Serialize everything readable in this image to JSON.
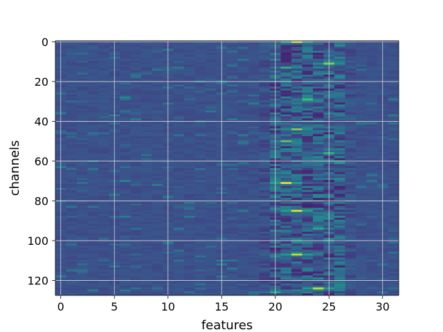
{
  "chart_data": {
    "type": "heatmap",
    "title": "",
    "xlabel": "features",
    "ylabel": "channels",
    "xlim": [
      -0.5,
      31.5
    ],
    "ylim": [
      127.5,
      -0.5
    ],
    "n_features": 32,
    "n_channels": 128,
    "x_ticks": [
      0,
      5,
      10,
      15,
      20,
      25,
      30
    ],
    "y_ticks": [
      0,
      20,
      40,
      60,
      80,
      100,
      120
    ],
    "grid": true,
    "colormap": "viridis",
    "colorbar": false,
    "background_level": 0.25,
    "active_feature_range": [
      19,
      27
    ],
    "description_note": "",
    "hotspots": [
      {
        "feature": 22.5,
        "channel": 0.5,
        "value": 1.0
      },
      {
        "feature": 25.5,
        "channel": 11,
        "value": 0.8
      },
      {
        "feature": 21.5,
        "channel": 13,
        "value": 0.65
      },
      {
        "feature": 23.5,
        "channel": 29,
        "value": 0.7
      },
      {
        "feature": 22.5,
        "channel": 44,
        "value": 0.8
      },
      {
        "feature": 21.5,
        "channel": 50,
        "value": 0.75
      },
      {
        "feature": 25.5,
        "channel": 56,
        "value": 0.65
      },
      {
        "feature": 21.5,
        "channel": 71,
        "value": 0.95
      },
      {
        "feature": 22.5,
        "channel": 85,
        "value": 0.95
      },
      {
        "feature": 24.5,
        "channel": 94,
        "value": 0.6
      },
      {
        "feature": 22.5,
        "channel": 107,
        "value": 0.9
      },
      {
        "feature": 24.5,
        "channel": 124,
        "value": 0.9
      },
      {
        "feature": 26.5,
        "channel": 61,
        "value": 0.55
      },
      {
        "feature": 20.5,
        "channel": 126,
        "value": 0.6
      },
      {
        "feature": 6.5,
        "channel": 28,
        "value": 0.45
      },
      {
        "feature": 6.5,
        "channel": 70,
        "value": 0.45
      },
      {
        "feature": 6.5,
        "channel": 125,
        "value": 0.4
      },
      {
        "feature": 3.5,
        "channel": 46,
        "value": 0.38
      },
      {
        "feature": 15.5,
        "channel": 62,
        "value": 0.38
      }
    ]
  }
}
